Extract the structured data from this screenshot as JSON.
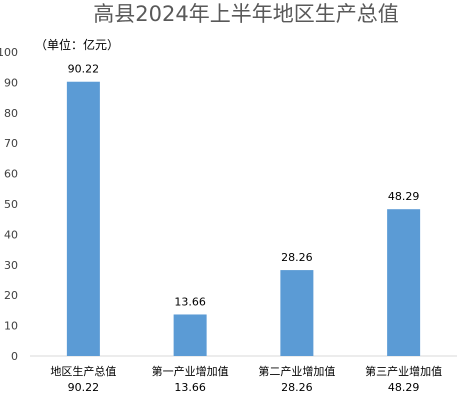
{
  "chart_data": {
    "type": "bar",
    "title": "高县2024年上半年地区生产总值",
    "unit_label": "（单位：亿元）",
    "categories": [
      {
        "name": "地区生产总值",
        "value_text": "90.22"
      },
      {
        "name": "第一产业增加值",
        "value_text": "13.66"
      },
      {
        "name": "第二产业增加值",
        "value_text": "28.26"
      },
      {
        "name": "第三产业增加值",
        "value_text": "48.29"
      }
    ],
    "values": [
      90.22,
      13.66,
      28.26,
      48.29
    ],
    "data_labels": [
      "90.22",
      "13.66",
      "28.26",
      "48.29"
    ],
    "ylim": [
      0,
      100
    ],
    "yticks": [
      "0",
      "10",
      "20",
      "30",
      "40",
      "50",
      "60",
      "70",
      "80",
      "90",
      "100"
    ],
    "grid": false,
    "legend": "none",
    "bar_color": "#5b9bd5",
    "axis_color": "#d9d9d9"
  }
}
